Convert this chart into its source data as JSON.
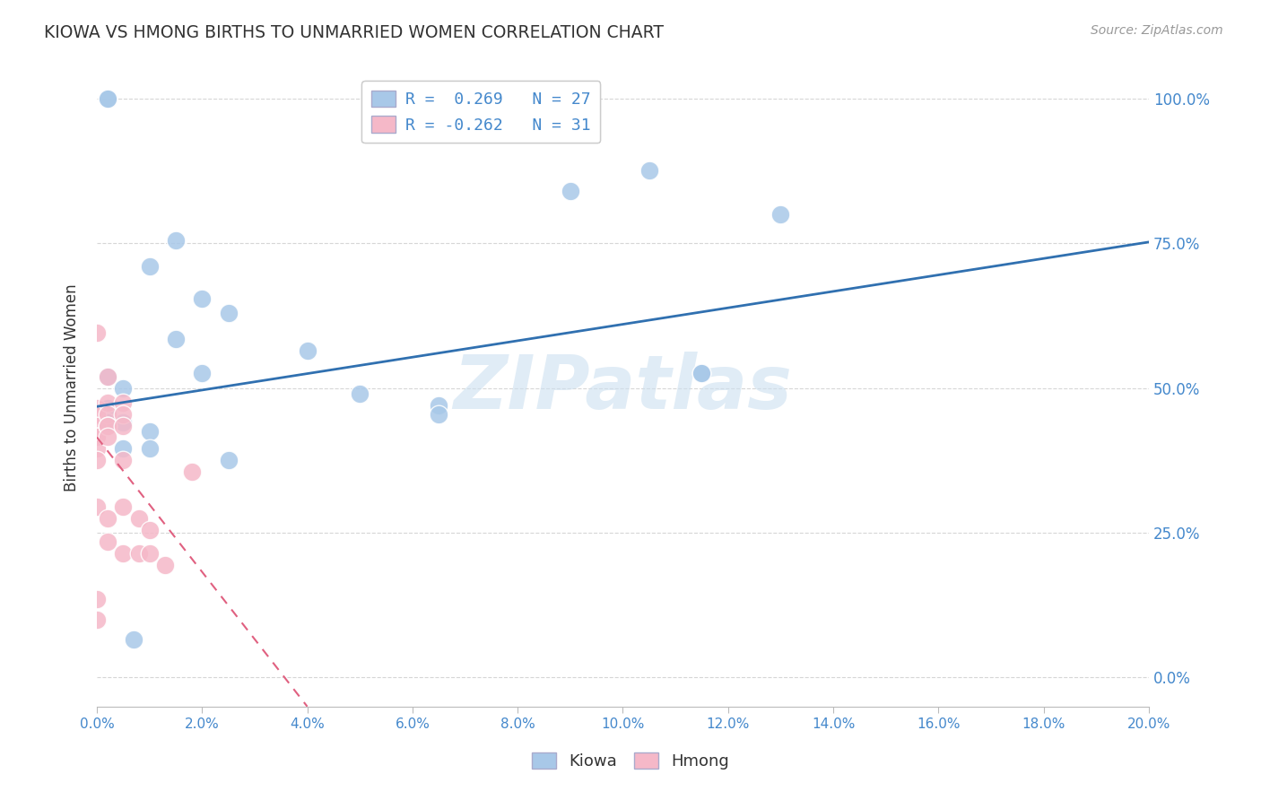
{
  "title": "KIOWA VS HMONG BIRTHS TO UNMARRIED WOMEN CORRELATION CHART",
  "source": "Source: ZipAtlas.com",
  "ylabel": "Births to Unmarried Women",
  "x_tick_labels": [
    "0.0%",
    "2.0%",
    "4.0%",
    "6.0%",
    "8.0%",
    "10.0%",
    "12.0%",
    "14.0%",
    "16.0%",
    "18.0%",
    "20.0%"
  ],
  "x_tick_vals": [
    0.0,
    0.02,
    0.04,
    0.06,
    0.08,
    0.1,
    0.12,
    0.14,
    0.16,
    0.18,
    0.2
  ],
  "y_tick_labels": [
    "0.0%",
    "25.0%",
    "50.0%",
    "75.0%",
    "100.0%"
  ],
  "y_tick_vals": [
    0.0,
    0.25,
    0.5,
    0.75,
    1.0
  ],
  "xlim": [
    0.0,
    0.2
  ],
  "ylim": [
    -0.05,
    1.05
  ],
  "kiowa_x": [
    0.002,
    0.01,
    0.015,
    0.02,
    0.015,
    0.02,
    0.002,
    0.002,
    0.005,
    0.005,
    0.005,
    0.01,
    0.01,
    0.05,
    0.065,
    0.04,
    0.065,
    0.09,
    0.105,
    0.115,
    0.115,
    0.13,
    0.025,
    0.025,
    0.007,
    0.002,
    0.002
  ],
  "kiowa_y": [
    0.52,
    0.71,
    0.755,
    0.655,
    0.585,
    0.525,
    0.465,
    0.44,
    0.44,
    0.395,
    0.5,
    0.425,
    0.395,
    0.49,
    0.47,
    0.565,
    0.455,
    0.84,
    0.875,
    0.525,
    0.525,
    0.8,
    0.63,
    0.375,
    0.065,
    1.0,
    1.0
  ],
  "hmong_x": [
    0.0,
    0.0,
    0.0,
    0.0,
    0.0,
    0.0,
    0.0,
    0.0,
    0.0,
    0.0,
    0.0,
    0.002,
    0.002,
    0.002,
    0.002,
    0.002,
    0.002,
    0.002,
    0.002,
    0.005,
    0.005,
    0.005,
    0.005,
    0.005,
    0.005,
    0.008,
    0.008,
    0.01,
    0.01,
    0.013,
    0.018
  ],
  "hmong_y": [
    0.595,
    0.465,
    0.455,
    0.435,
    0.415,
    0.415,
    0.395,
    0.375,
    0.295,
    0.135,
    0.1,
    0.52,
    0.475,
    0.455,
    0.435,
    0.435,
    0.415,
    0.275,
    0.235,
    0.475,
    0.455,
    0.435,
    0.375,
    0.295,
    0.215,
    0.275,
    0.215,
    0.255,
    0.215,
    0.195,
    0.355
  ],
  "kiowa_line_x": [
    0.0,
    0.2
  ],
  "kiowa_line_y": [
    0.468,
    0.752
  ],
  "hmong_line_x": [
    0.0,
    0.04
  ],
  "hmong_line_y": [
    0.415,
    -0.05
  ],
  "kiowa_color": "#a8c8e8",
  "hmong_color": "#f5b8c8",
  "kiowa_line_color": "#3070b0",
  "hmong_line_color": "#e06080",
  "background_color": "#ffffff",
  "grid_color": "#cccccc",
  "tick_label_color": "#4488cc",
  "watermark_text": "ZIPatlas",
  "watermark_color": "#cce0f0",
  "legend_kiowa_color": "#a8c8e8",
  "legend_hmong_color": "#f5b8c8"
}
